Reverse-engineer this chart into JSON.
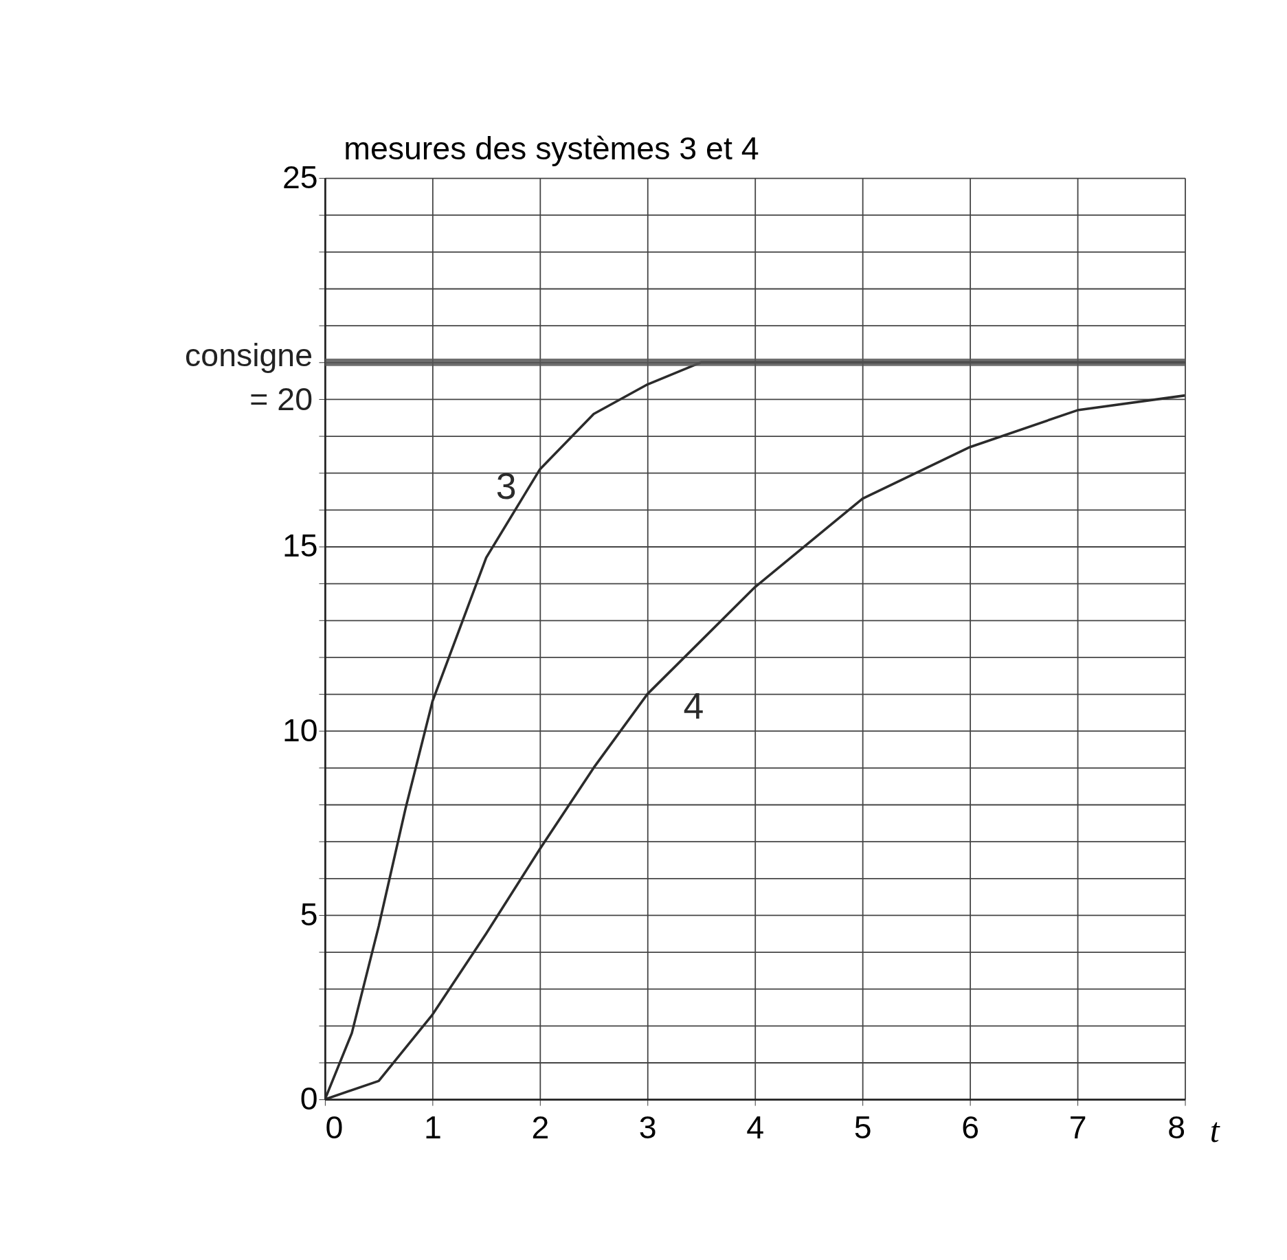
{
  "chart_data": {
    "type": "line",
    "xlabel": "t",
    "ylabel": "mesures des systèmes 3 et 4",
    "xlim": [
      0,
      8
    ],
    "xticks": [
      0,
      1,
      2,
      3,
      4,
      5,
      6,
      7,
      8
    ],
    "ylim": [
      0,
      25
    ],
    "yticks": [
      0,
      {
        "value": 1,
        "label": null
      },
      {
        "value": 2,
        "label": null
      },
      {
        "value": 3,
        "label": null
      },
      {
        "value": 4,
        "label": null
      },
      5,
      {
        "value": 6,
        "label": null
      },
      {
        "value": 7,
        "label": null
      },
      {
        "value": 8,
        "label": null
      },
      {
        "value": 9,
        "label": null
      },
      10,
      {
        "value": 11,
        "label": null
      },
      {
        "value": 12,
        "label": null
      },
      {
        "value": 13,
        "label": null
      },
      {
        "value": 14,
        "label": null
      },
      15,
      {
        "value": 16,
        "label": null
      },
      {
        "value": 17,
        "label": null
      },
      {
        "value": 18,
        "label": null
      },
      {
        "value": 19,
        "label": null
      },
      {
        "value": 20,
        "label": null
      },
      {
        "value": 21,
        "label": null
      },
      {
        "value": 22,
        "label": null
      },
      {
        "value": 23,
        "label": null
      },
      {
        "value": 24,
        "label": null
      },
      25
    ],
    "grid": true,
    "marker": "none",
    "line_style": "solid",
    "series": [
      {
        "name": "3",
        "color": "#2b2b2b",
        "x": [
          0,
          0.25,
          0.5,
          0.75,
          1,
          1.5,
          2,
          2.5,
          3,
          3.5,
          4,
          5,
          6,
          7,
          8
        ],
        "values": [
          0,
          1.8,
          4.7,
          7.9,
          10.8,
          14.7,
          17.1,
          18.6,
          19.4,
          20,
          20,
          20,
          20,
          20,
          20
        ]
      },
      {
        "name": "4",
        "color": "#2b2b2b",
        "x": [
          0,
          0.5,
          1,
          1.5,
          2,
          2.5,
          3,
          4,
          5,
          6,
          7,
          8
        ],
        "values": [
          0,
          0.5,
          2.3,
          4.5,
          6.8,
          9,
          11,
          13.9,
          16.3,
          17.7,
          18.7,
          19.1
        ]
      }
    ],
    "ref_lines": [
      {
        "axis": "y",
        "value": 20,
        "label": "consigne = 20",
        "color": "#555555"
      }
    ]
  }
}
